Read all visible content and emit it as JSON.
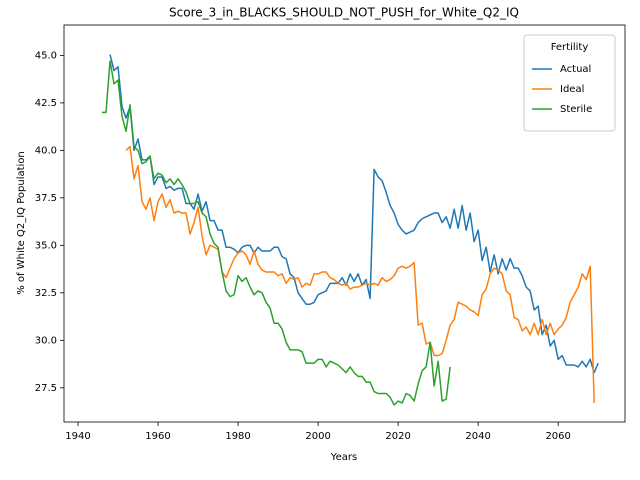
{
  "chart_data": {
    "type": "line",
    "title": "Score_3_in_BLACKS_SHOULD_NOT_PUSH_for_White_Q2_IQ",
    "x_label": "Years",
    "y_label": "% of White Q2_IQ Population",
    "legend_title": "Fertility",
    "legend": "upper right",
    "x": [
      1946,
      1947,
      1948,
      1949,
      1950,
      1951,
      1952,
      1953,
      1954,
      1955,
      1956,
      1957,
      1958,
      1959,
      1960,
      1961,
      1962,
      1963,
      1964,
      1965,
      1966,
      1967,
      1968,
      1969,
      1970,
      1971,
      1972,
      1973,
      1974,
      1975,
      1976,
      1977,
      1978,
      1979,
      1980,
      1981,
      1982,
      1983,
      1984,
      1985,
      1986,
      1987,
      1988,
      1989,
      1990,
      1991,
      1992,
      1993,
      1994,
      1995,
      1996,
      1997,
      1998,
      1999,
      2000,
      2001,
      2002,
      2003,
      2004,
      2005,
      2006,
      2007,
      2008,
      2009,
      2010,
      2011,
      2012,
      2013,
      2014,
      2015,
      2016,
      2017,
      2018,
      2019,
      2020,
      2021,
      2022,
      2023,
      2024,
      2025,
      2026,
      2027,
      2028,
      2029,
      2030,
      2031,
      2032,
      2033,
      2034,
      2035,
      2036,
      2037,
      2038,
      2039,
      2040,
      2041,
      2042,
      2043,
      2044,
      2045,
      2046,
      2047,
      2048,
      2049,
      2050,
      2051,
      2052,
      2053,
      2054,
      2055,
      2056,
      2057,
      2058,
      2059,
      2060,
      2061,
      2062,
      2063,
      2064,
      2065,
      2066,
      2067,
      2068,
      2069,
      2070
    ],
    "series": [
      {
        "name": "Actual",
        "color": "#1f77b4",
        "values": [
          null,
          null,
          45.05,
          44.2,
          44.4,
          42.3,
          41.7,
          42.3,
          40.0,
          40.6,
          39.5,
          39.5,
          39.7,
          38.2,
          38.6,
          38.6,
          38.0,
          38.1,
          37.9,
          38.0,
          38.0,
          37.2,
          37.2,
          36.9,
          37.7,
          36.8,
          37.3,
          36.3,
          36.3,
          35.8,
          35.8,
          34.9,
          34.9,
          34.8,
          34.6,
          34.9,
          35.0,
          35.0,
          34.6,
          34.9,
          34.7,
          34.7,
          34.7,
          34.9,
          34.9,
          34.4,
          34.3,
          33.5,
          33.3,
          32.5,
          32.2,
          31.9,
          31.9,
          32.0,
          32.4,
          32.5,
          32.6,
          33.0,
          33.0,
          33.0,
          33.3,
          32.9,
          33.5,
          33.1,
          33.5,
          32.9,
          33.2,
          32.2,
          39.0,
          38.6,
          38.4,
          37.8,
          37.1,
          36.7,
          36.1,
          35.8,
          35.6,
          35.7,
          35.8,
          36.2,
          36.4,
          36.5,
          36.6,
          36.7,
          36.7,
          36.2,
          36.5,
          35.9,
          36.9,
          35.9,
          37.1,
          35.8,
          36.7,
          35.2,
          35.8,
          34.2,
          34.9,
          33.6,
          34.5,
          33.5,
          34.3,
          33.7,
          34.3,
          33.8,
          33.8,
          33.4,
          32.8,
          32.6,
          31.6,
          31.8,
          30.3,
          30.8,
          29.7,
          30.0,
          29.0,
          29.2,
          28.7,
          28.7,
          28.7,
          28.6,
          28.9,
          28.6,
          29.0,
          28.3,
          28.8
        ]
      },
      {
        "name": "Ideal",
        "color": "#ff7f0e",
        "values": [
          null,
          null,
          null,
          null,
          null,
          null,
          40.0,
          40.2,
          38.5,
          39.2,
          37.3,
          36.9,
          37.5,
          36.3,
          37.3,
          37.7,
          37.0,
          37.4,
          36.7,
          36.8,
          36.7,
          36.7,
          35.6,
          36.2,
          37.0,
          35.5,
          34.5,
          35.0,
          34.9,
          34.8,
          33.6,
          33.3,
          33.8,
          34.3,
          34.6,
          34.7,
          34.5,
          34.0,
          34.7,
          34.0,
          33.7,
          33.6,
          33.6,
          33.6,
          33.4,
          33.5,
          33.0,
          33.3,
          33.2,
          33.3,
          32.8,
          33.0,
          32.9,
          33.5,
          33.5,
          33.6,
          33.6,
          33.3,
          33.2,
          33.0,
          32.9,
          33.0,
          32.7,
          32.8,
          32.8,
          32.9,
          33.0,
          32.9,
          33.0,
          32.9,
          33.3,
          33.1,
          33.2,
          33.4,
          33.8,
          33.9,
          33.8,
          33.9,
          34.1,
          30.8,
          30.9,
          29.8,
          29.9,
          29.2,
          29.2,
          29.3,
          30.0,
          30.8,
          31.1,
          32.0,
          31.9,
          31.8,
          31.6,
          31.5,
          31.3,
          32.4,
          32.7,
          33.5,
          33.8,
          33.7,
          33.5,
          32.6,
          32.4,
          31.2,
          31.1,
          30.5,
          30.7,
          30.3,
          30.9,
          30.3,
          31.1,
          30.3,
          30.9,
          30.3,
          30.6,
          30.8,
          31.2,
          32.0,
          32.4,
          32.8,
          33.5,
          33.2,
          33.9,
          26.7,
          null
        ]
      },
      {
        "name": "Sterile",
        "color": "#2ca02c",
        "values": [
          42.0,
          42.0,
          44.7,
          43.5,
          43.7,
          41.8,
          41.0,
          42.4,
          40.2,
          40.0,
          39.3,
          39.4,
          39.7,
          38.5,
          38.8,
          38.7,
          38.3,
          38.5,
          38.2,
          38.5,
          38.2,
          37.8,
          37.2,
          37.2,
          37.3,
          36.7,
          36.5,
          35.6,
          35.1,
          34.9,
          33.6,
          32.6,
          32.3,
          32.4,
          33.4,
          33.1,
          33.3,
          32.8,
          32.4,
          32.6,
          32.5,
          32.0,
          31.7,
          30.9,
          30.9,
          30.6,
          29.9,
          29.5,
          29.5,
          29.5,
          29.4,
          28.8,
          28.8,
          28.8,
          29.0,
          29.0,
          28.6,
          28.9,
          28.8,
          28.7,
          28.5,
          28.3,
          28.6,
          28.3,
          28.1,
          28.1,
          27.8,
          27.8,
          27.3,
          27.2,
          27.2,
          27.2,
          27.0,
          26.6,
          26.8,
          26.7,
          27.2,
          27.1,
          26.8,
          27.7,
          28.4,
          28.6,
          29.9,
          27.6,
          28.9,
          26.8,
          26.9,
          28.6,
          null,
          null,
          null,
          null,
          null,
          null,
          null,
          null,
          null,
          null,
          null,
          null,
          null,
          null,
          null,
          null,
          null,
          null,
          null,
          null,
          null,
          null,
          null,
          null,
          null,
          null,
          null,
          null,
          null,
          null,
          null,
          null,
          null,
          null,
          null,
          null,
          null
        ]
      }
    ],
    "xlim": [
      1936.5,
      2076.7
    ],
    "ylim": [
      25.7,
      46.6
    ],
    "xticks": [
      1940,
      1960,
      1980,
      2000,
      2020,
      2040,
      2060
    ],
    "yticks": [
      {
        "value": 27.5,
        "label": "27.5"
      },
      {
        "value": 30,
        "label": "30.0"
      },
      {
        "value": 32.5,
        "label": "32.5"
      },
      {
        "value": 35,
        "label": "35.0"
      },
      {
        "value": 37.5,
        "label": "37.5"
      },
      {
        "value": 40,
        "label": "40.0"
      },
      {
        "value": 42.5,
        "label": "42.5"
      },
      {
        "value": 45,
        "label": "45.0"
      }
    ]
  }
}
